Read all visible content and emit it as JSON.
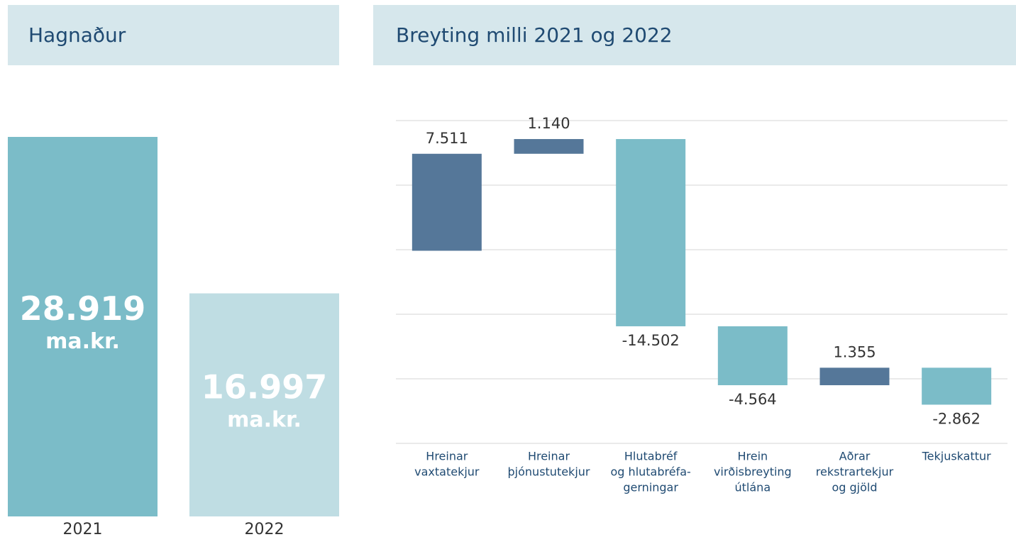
{
  "chart_data": [
    {
      "type": "bar",
      "title": "Hagnaður",
      "categories": [
        "2021",
        "2022"
      ],
      "values": [
        28919,
        16997
      ],
      "value_labels": [
        "28.919",
        "16.997"
      ],
      "unit": "ma.kr.",
      "colors": [
        "#7bbcc8",
        "#bfdde3"
      ],
      "ylim": [
        0,
        30000
      ]
    },
    {
      "type": "waterfall",
      "title": "Breyting milli 2021 og 2022",
      "categories": [
        [
          "Hreinar",
          "vaxtatekjur"
        ],
        [
          "Hreinar",
          "þjónustutekjur"
        ],
        [
          "Hlutabréf",
          "og hlutabréfa-",
          "gerningar"
        ],
        [
          "Hrein",
          "virðisbreyting",
          "útlána"
        ],
        [
          "Aðrar",
          "rekstrartekjur",
          "og gjöld"
        ],
        [
          "Tekjuskattur"
        ]
      ],
      "values": [
        7511,
        1140,
        -14502,
        -4564,
        1355,
        -2862
      ],
      "value_labels": [
        "7.511",
        "1.140",
        "-14.502",
        "-4.564",
        "1.355",
        "-2.862"
      ],
      "positive_color": "#557799",
      "negative_color": "#7bbcc8",
      "ylim": [
        14000,
        39000
      ],
      "yticks": [
        14000,
        19000,
        24000,
        29000,
        34000,
        39000
      ],
      "grid": true
    }
  ]
}
